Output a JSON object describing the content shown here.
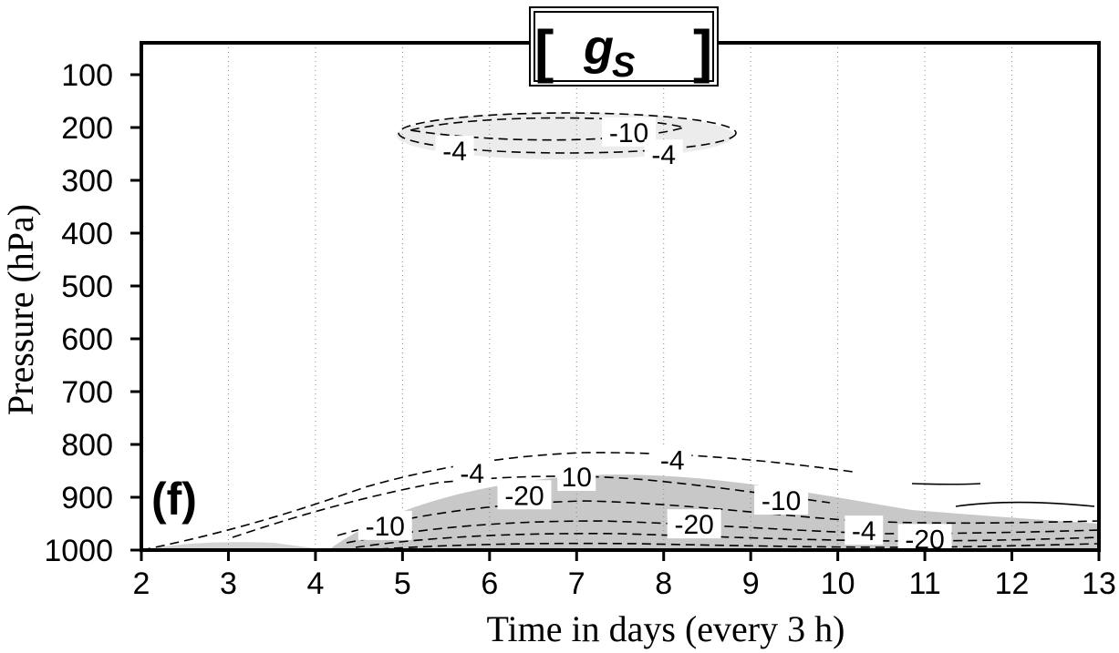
{
  "chart_data": {
    "type": "contour",
    "panel_label": "(f)",
    "title": {
      "open_bracket": "[",
      "variable": "g",
      "subscript": "S",
      "close_bracket": "]"
    },
    "xlabel": "Time in days (every 3 h)",
    "ylabel": "Pressure (hPa)",
    "xlim": [
      2,
      13
    ],
    "ylim": [
      1000,
      50
    ],
    "y_axis_inverted": true,
    "x_ticks": [
      "2",
      "3",
      "4",
      "5",
      "6",
      "7",
      "8",
      "9",
      "10",
      "11",
      "12",
      "13"
    ],
    "y_ticks": [
      "100",
      "200",
      "300",
      "400",
      "500",
      "600",
      "700",
      "800",
      "900",
      "1000"
    ],
    "grid": "vertical dotted lines at each day",
    "negative_contours": "dashed",
    "shading": "grey for negative values",
    "contour_labels": [
      {
        "text": "-10",
        "x": 7.6,
        "y": 210
      },
      {
        "text": "-4",
        "x": 5.6,
        "y": 245
      },
      {
        "text": "-4",
        "x": 8.0,
        "y": 252
      },
      {
        "text": "-4",
        "x": 5.8,
        "y": 855
      },
      {
        "text": "10",
        "x": 7.0,
        "y": 862
      },
      {
        "text": "-4",
        "x": 8.1,
        "y": 830
      },
      {
        "text": "-10",
        "x": 4.8,
        "y": 955
      },
      {
        "text": "-20",
        "x": 6.4,
        "y": 897
      },
      {
        "text": "-20",
        "x": 8.35,
        "y": 952
      },
      {
        "text": "-10",
        "x": 9.35,
        "y": 907
      },
      {
        "text": "-4",
        "x": 10.3,
        "y": 964
      },
      {
        "text": "-20",
        "x": 11.0,
        "y": 980
      }
    ]
  }
}
